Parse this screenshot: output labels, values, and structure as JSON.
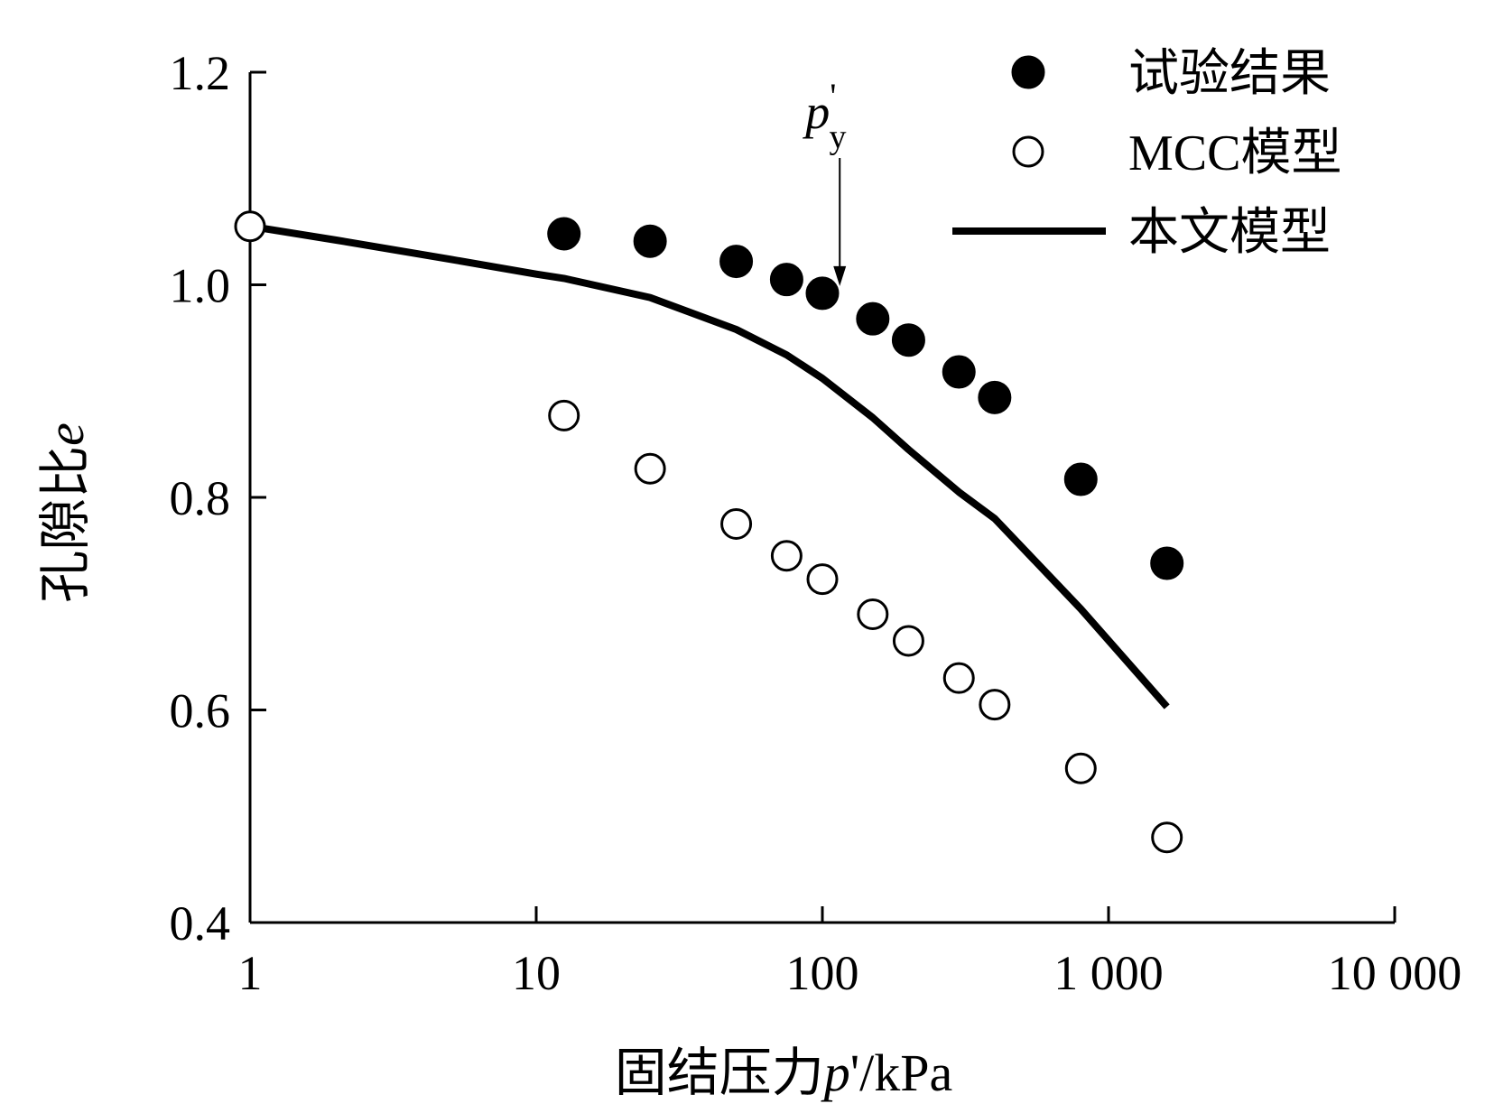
{
  "chart_data": {
    "type": "scatter",
    "xscale": "log",
    "xlim": [
      1,
      10000
    ],
    "ylim": [
      0.4,
      1.2
    ],
    "xticks": [
      1,
      10,
      100,
      1000,
      10000
    ],
    "xtick_labels": [
      "1",
      "10",
      "100",
      "1 000",
      "10 000"
    ],
    "yticks": [
      0.4,
      0.6,
      0.8,
      1.0,
      1.2
    ],
    "ytick_labels": [
      "0.4",
      "0.6",
      "0.8",
      "1.0",
      "1.2"
    ],
    "xlabel_prefix": "固结压力",
    "xlabel_var": "p",
    "xlabel_suffix": "'/kPa",
    "ylabel_prefix": "孔隙比",
    "ylabel_var": "e",
    "legend_position": "top-right",
    "grid": false,
    "series": [
      {
        "name": "试验结果",
        "kind": "filled-marker",
        "color": "#000000",
        "x": [
          12.5,
          25,
          50,
          75,
          100,
          150,
          200,
          300,
          400,
          800,
          1600
        ],
        "y": [
          1.048,
          1.041,
          1.022,
          1.005,
          0.992,
          0.968,
          0.948,
          0.918,
          0.894,
          0.817,
          0.738
        ]
      },
      {
        "name": "MCC模型",
        "kind": "hollow-marker",
        "color": "#000000",
        "x": [
          1,
          12.5,
          25,
          50,
          75,
          100,
          150,
          200,
          300,
          400,
          800,
          1600
        ],
        "y": [
          1.055,
          0.877,
          0.827,
          0.775,
          0.745,
          0.723,
          0.69,
          0.665,
          0.63,
          0.605,
          0.545,
          0.48
        ]
      },
      {
        "name": "本文模型",
        "kind": "line",
        "color": "#000000",
        "x": [
          1,
          2,
          5,
          10,
          12.5,
          25,
          50,
          75,
          100,
          150,
          200,
          300,
          400,
          800,
          1600
        ],
        "y": [
          1.055,
          1.042,
          1.024,
          1.01,
          1.006,
          0.988,
          0.958,
          0.934,
          0.912,
          0.875,
          0.845,
          0.805,
          0.78,
          0.695,
          0.603
        ]
      }
    ],
    "annotation": {
      "var": "p",
      "prime": "'",
      "sub": "y",
      "x": 115,
      "y": 0.992
    }
  }
}
